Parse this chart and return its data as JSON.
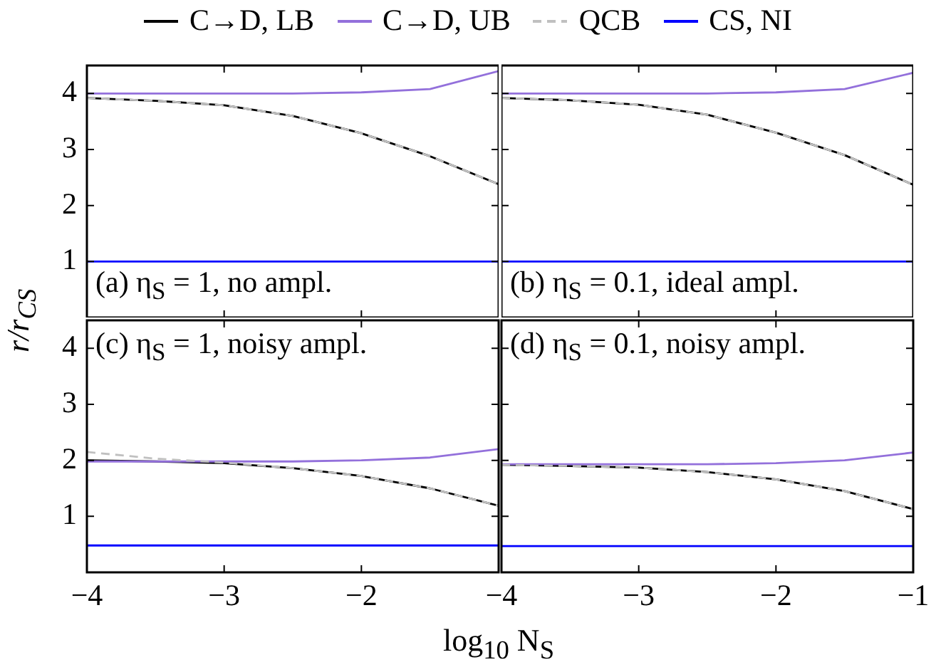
{
  "chart_data": [
    {
      "type": "line",
      "ylabel": "r/r$_{CS}$",
      "annotations": [
        "(a) η$_{S}$ = 1, no ampl."
      ],
      "xlim": [
        -4,
        -1
      ],
      "xticks": [
        -4,
        -3,
        -2,
        -1
      ],
      "ylim": [
        0,
        4.5
      ],
      "yticks": [
        1,
        2,
        3,
        4
      ],
      "tick_labels": "y",
      "legend": "top",
      "grid": false,
      "marker": "none",
      "x": [
        -4,
        -3.5,
        -3,
        -2.5,
        -2,
        -1.5,
        -1
      ],
      "series": [
        {
          "name": "C→D, LB",
          "color": "#000000",
          "values": [
            3.92,
            3.87,
            3.79,
            3.6,
            3.29,
            2.88,
            2.38
          ]
        },
        {
          "name": "C→D, UB",
          "color": "#9370db",
          "values": [
            4.0,
            4.0,
            4.0,
            4.0,
            4.02,
            4.08,
            4.4
          ]
        },
        {
          "name": "QCB",
          "color": "#c0c0c0",
          "line_style": "dashed",
          "values": [
            3.92,
            3.87,
            3.79,
            3.6,
            3.29,
            2.88,
            2.38
          ]
        },
        {
          "name": "CS, NI",
          "color": "#0000ff",
          "values": [
            1,
            1,
            1,
            1,
            1,
            1,
            1
          ]
        }
      ]
    },
    {
      "type": "line",
      "annotations": [
        "(b) η$_{S}$ = 0.1, ideal ampl."
      ],
      "xlim": [
        -4,
        -1
      ],
      "xticks": [
        -4,
        -3,
        -2,
        -1
      ],
      "ylim": [
        0,
        4.5
      ],
      "yticks": [
        1,
        2,
        3,
        4
      ],
      "tick_labels": false,
      "grid": false,
      "marker": "none",
      "x": [
        -4,
        -3.5,
        -3,
        -2.5,
        -2,
        -1.5,
        -1
      ],
      "series": [
        {
          "name": "C→D, LB",
          "color": "#000000",
          "values": [
            3.92,
            3.88,
            3.8,
            3.62,
            3.3,
            2.9,
            2.37
          ]
        },
        {
          "name": "C→D, UB",
          "color": "#9370db",
          "values": [
            4.0,
            4.0,
            4.0,
            4.0,
            4.02,
            4.08,
            4.37
          ]
        },
        {
          "name": "QCB",
          "color": "#c0c0c0",
          "line_style": "dashed",
          "values": [
            3.92,
            3.88,
            3.8,
            3.62,
            3.3,
            2.9,
            2.37
          ]
        },
        {
          "name": "CS, NI",
          "color": "#0000ff",
          "values": [
            1,
            1,
            1,
            1,
            1,
            1,
            1
          ]
        }
      ]
    },
    {
      "type": "line",
      "xlabel": "log$_{10}$ N$_{S}$",
      "annotations": [
        "(c) η$_{S}$ = 1, noisy ampl."
      ],
      "xlim": [
        -4,
        -1
      ],
      "xticks": [
        -4,
        -3,
        -2
      ],
      "ylim": [
        0,
        4.5
      ],
      "yticks": [
        1,
        2,
        3,
        4
      ],
      "grid": false,
      "marker": "none",
      "x": [
        -4,
        -3.5,
        -3,
        -2.5,
        -2,
        -1.5,
        -1
      ],
      "series": [
        {
          "name": "C→D, LB",
          "color": "#000000",
          "values": [
            2.0,
            1.98,
            1.95,
            1.86,
            1.72,
            1.5,
            1.19
          ]
        },
        {
          "name": "C→D, UB",
          "color": "#9370db",
          "values": [
            1.98,
            1.98,
            1.98,
            1.98,
            2.0,
            2.05,
            2.2
          ]
        },
        {
          "name": "QCB",
          "color": "#c0c0c0",
          "line_style": "dashed",
          "values": [
            2.15,
            2.03,
            1.96,
            1.86,
            1.72,
            1.5,
            1.19
          ]
        },
        {
          "name": "CS, NI",
          "color": "#0000ff",
          "values": [
            0.48,
            0.48,
            0.48,
            0.48,
            0.48,
            0.48,
            0.48
          ]
        }
      ]
    },
    {
      "type": "line",
      "annotations": [
        "(d) η$_{S}$ = 0.1, noisy ampl."
      ],
      "xlim": [
        -4,
        -1
      ],
      "xticks": [
        -4,
        -3,
        -2,
        -1
      ],
      "ylim": [
        0,
        4.5
      ],
      "yticks": [
        1,
        2,
        3,
        4
      ],
      "tick_labels": "x",
      "grid": false,
      "marker": "none",
      "x": [
        -4,
        -3.5,
        -3,
        -2.5,
        -2,
        -1.5,
        -1
      ],
      "series": [
        {
          "name": "C→D, LB",
          "color": "#000000",
          "values": [
            1.92,
            1.9,
            1.87,
            1.79,
            1.66,
            1.45,
            1.13
          ]
        },
        {
          "name": "C→D, UB",
          "color": "#9370db",
          "values": [
            1.93,
            1.93,
            1.93,
            1.93,
            1.95,
            2.0,
            2.14
          ]
        },
        {
          "name": "QCB",
          "color": "#c0c0c0",
          "line_style": "dashed",
          "values": [
            1.92,
            1.9,
            1.87,
            1.79,
            1.66,
            1.45,
            1.13
          ]
        },
        {
          "name": "CS, NI",
          "color": "#0000ff",
          "values": [
            0.47,
            0.47,
            0.47,
            0.47,
            0.47,
            0.47,
            0.47
          ]
        }
      ]
    }
  ]
}
